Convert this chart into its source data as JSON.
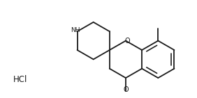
{
  "background_color": "#ffffff",
  "line_color": "#1a1a1a",
  "line_width": 1.3,
  "text_color": "#1a1a1a",
  "hcl_text": "HCl",
  "hcl_fontsize": 8.5,
  "o_label": "O",
  "nh_label": "NH",
  "o_carbonyl": "O",
  "figsize": [
    2.82,
    1.41
  ],
  "dpi": 100
}
